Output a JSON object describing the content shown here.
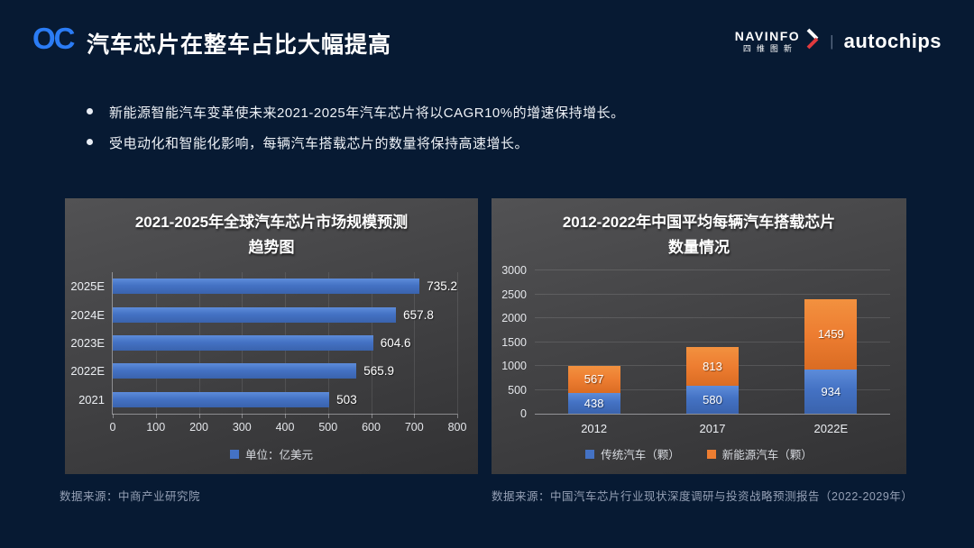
{
  "header": {
    "logo_text": "OC",
    "title": "汽车芯片在整车占比大幅提高",
    "brand": {
      "navinfo_en": "NAVINFO",
      "navinfo_cn": "四维图新",
      "divider": "|",
      "autochips": "autochips"
    }
  },
  "bullets": [
    "新能源智能汽车变革使未来2021-2025年汽车芯片将以CAGR10%的增速保持增长。",
    "受电动化和智能化影响，每辆汽车搭载芯片的数量将保持高速增长。"
  ],
  "colors": {
    "background": "#071A33",
    "logo_blue": "#2B7CF5",
    "bar_blue": "#4472C4",
    "bar_orange": "#ED7D31",
    "chevron_red": "#E03A3E"
  },
  "chart_data": [
    {
      "type": "bar",
      "orientation": "horizontal",
      "title": "2021-2025年全球汽车芯片市场规模预测",
      "title_line2": "趋势图",
      "categories": [
        "2025E",
        "2024E",
        "2023E",
        "2022E",
        "2021"
      ],
      "values": [
        735.2,
        657.8,
        604.6,
        565.9,
        503
      ],
      "color": "#4472C4",
      "xlim": [
        0,
        800
      ],
      "x_ticks": [
        0,
        100,
        200,
        300,
        400,
        500,
        600,
        700,
        800
      ],
      "grid": true,
      "legend": {
        "label": "单位：亿美元",
        "color": "#4472C4",
        "position": "bottom"
      },
      "source": "数据来源：中商产业研究院"
    },
    {
      "type": "bar",
      "subtype": "stacked-column",
      "title": "2012-2022年中国平均每辆汽车搭载芯片",
      "title_line2": "数量情况",
      "categories": [
        "2012",
        "2017",
        "2022E"
      ],
      "series": [
        {
          "name": "传统汽车（颗）",
          "color": "#4472C4",
          "values": [
            438,
            580,
            934
          ]
        },
        {
          "name": "新能源汽车（颗）",
          "color": "#ED7D31",
          "values": [
            567,
            813,
            1459
          ]
        }
      ],
      "ylim": [
        0,
        3000
      ],
      "y_ticks": [
        0,
        500,
        1000,
        1500,
        2000,
        2500,
        3000
      ],
      "grid": true,
      "legend_position": "bottom",
      "source": "数据来源：中国汽车芯片行业现状深度调研与投资战略预测报告（2022-2029年）"
    }
  ]
}
